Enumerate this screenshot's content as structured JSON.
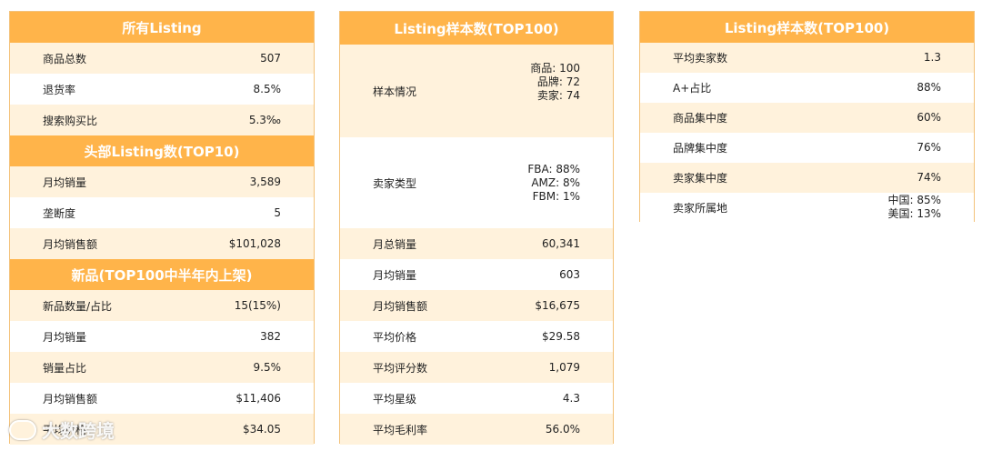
{
  "panel1": {
    "sec1": {
      "title": "所有Listing",
      "rows": [
        {
          "label": "商品总数",
          "value": "507"
        },
        {
          "label": "退货率",
          "value": "8.5%"
        },
        {
          "label": "搜索购买比",
          "value": "5.3‰"
        }
      ]
    },
    "sec2": {
      "title": "头部Listing数(TOP10)",
      "rows": [
        {
          "label": "月均销量",
          "value": "3,589"
        },
        {
          "label": "垄断度",
          "value": "5"
        },
        {
          "label": "月均销售额",
          "value": "$101,028"
        }
      ]
    },
    "sec3": {
      "title": "新品(TOP100中半年内上架)",
      "rows": [
        {
          "label": "新品数量/占比",
          "value": "15(15%)"
        },
        {
          "label": "月均销量",
          "value": "382"
        },
        {
          "label": "销量占比",
          "value": "9.5%"
        },
        {
          "label": "月均销售额",
          "value": "$11,406"
        },
        {
          "label": "平均价格",
          "value": "$34.05"
        }
      ]
    }
  },
  "panel2": {
    "title": "Listing样本数(TOP100)",
    "sample": {
      "label": "样本情况",
      "lines": [
        "商品:  100",
        "品牌:  72",
        "卖家:  74"
      ]
    },
    "seller_type": {
      "label": "卖家类型",
      "lines": [
        "FBA: 88%",
        "AMZ: 8%",
        "FBM: 1%"
      ]
    },
    "rows": [
      {
        "label": "月总销量",
        "value": "60,341"
      },
      {
        "label": "月均销量",
        "value": "603"
      },
      {
        "label": "月均销售额",
        "value": "$16,675"
      },
      {
        "label": "平均价格",
        "value": "$29.58"
      },
      {
        "label": "平均评分数",
        "value": "1,079"
      },
      {
        "label": "平均星级",
        "value": "4.3"
      },
      {
        "label": "平均毛利率",
        "value": "56.0%"
      }
    ]
  },
  "panel3": {
    "title": "Listing样本数(TOP100)",
    "rows": [
      {
        "label": "平均卖家数",
        "value": "1.3"
      },
      {
        "label": "A+占比",
        "value": "88%"
      },
      {
        "label": "商品集中度",
        "value": "60%"
      },
      {
        "label": "品牌集中度",
        "value": "76%"
      },
      {
        "label": "卖家集中度",
        "value": "74%"
      }
    ],
    "location": {
      "label": "卖家所属地",
      "lines": [
        "中国:  85%",
        "美国:  13%"
      ]
    }
  },
  "watermark": {
    "text": "大数跨境"
  },
  "colors": {
    "header": "#ffb44a",
    "stripe": "#fff2dc",
    "border": "#f3c27a"
  }
}
